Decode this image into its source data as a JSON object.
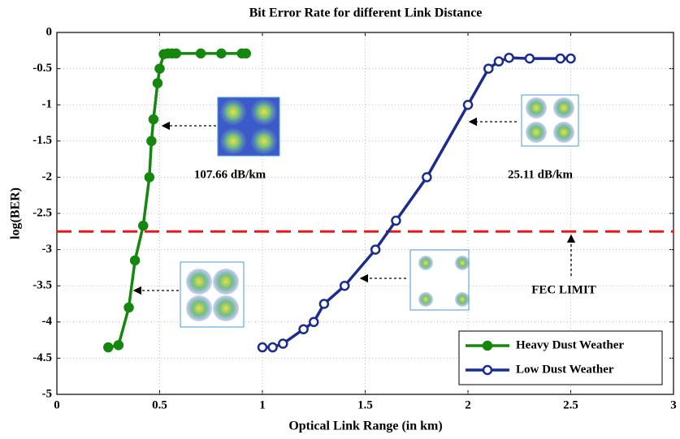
{
  "chart_data": {
    "type": "line",
    "title": "Bit Error Rate for different Link Distance",
    "xlabel": "Optical Link Range (in km)",
    "ylabel": "log(BER)",
    "xlim": [
      0,
      3
    ],
    "xticks": [
      0,
      0.5,
      1,
      1.5,
      2,
      2.5,
      3
    ],
    "ylim": [
      -5,
      0
    ],
    "yticks": [
      0,
      -0.5,
      -1,
      -1.5,
      -2,
      -2.5,
      -3,
      -3.5,
      -4,
      -4.5,
      -5
    ],
    "grid": true,
    "legend": "lower right",
    "series": [
      {
        "name": "Heavy Dust Weather",
        "color": "#14870f",
        "marker": "filled",
        "x": [
          0.25,
          0.3,
          0.35,
          0.38,
          0.42,
          0.45,
          0.46,
          0.47,
          0.49,
          0.5,
          0.52,
          0.54,
          0.56,
          0.58,
          0.7,
          0.8,
          0.9,
          0.92
        ],
        "values": [
          -4.35,
          -4.32,
          -3.8,
          -3.15,
          -2.67,
          -2.0,
          -1.5,
          -1.2,
          -0.7,
          -0.5,
          -0.3,
          -0.29,
          -0.29,
          -0.29,
          -0.29,
          -0.29,
          -0.29,
          -0.29
        ]
      },
      {
        "name": "Low Dust Weather",
        "color": "#1c2c8c",
        "marker": "open",
        "x": [
          1,
          1.05,
          1.1,
          1.2,
          1.25,
          1.3,
          1.4,
          1.55,
          1.65,
          1.8,
          2.0,
          2.1,
          2.15,
          2.2,
          2.3,
          2.45,
          2.5
        ],
        "values": [
          -4.35,
          -4.35,
          -4.3,
          -4.1,
          -4.0,
          -3.75,
          -3.5,
          -3.0,
          -2.6,
          -2.0,
          -1.0,
          -0.5,
          -0.4,
          -0.35,
          -0.36,
          -0.36,
          -0.36
        ]
      }
    ],
    "hline": {
      "value": -2.75,
      "color": "#e8191b",
      "label": "FEC LIMIT"
    },
    "annotations": [
      "107.66 dB/km",
      "25.11 dB/km"
    ]
  }
}
